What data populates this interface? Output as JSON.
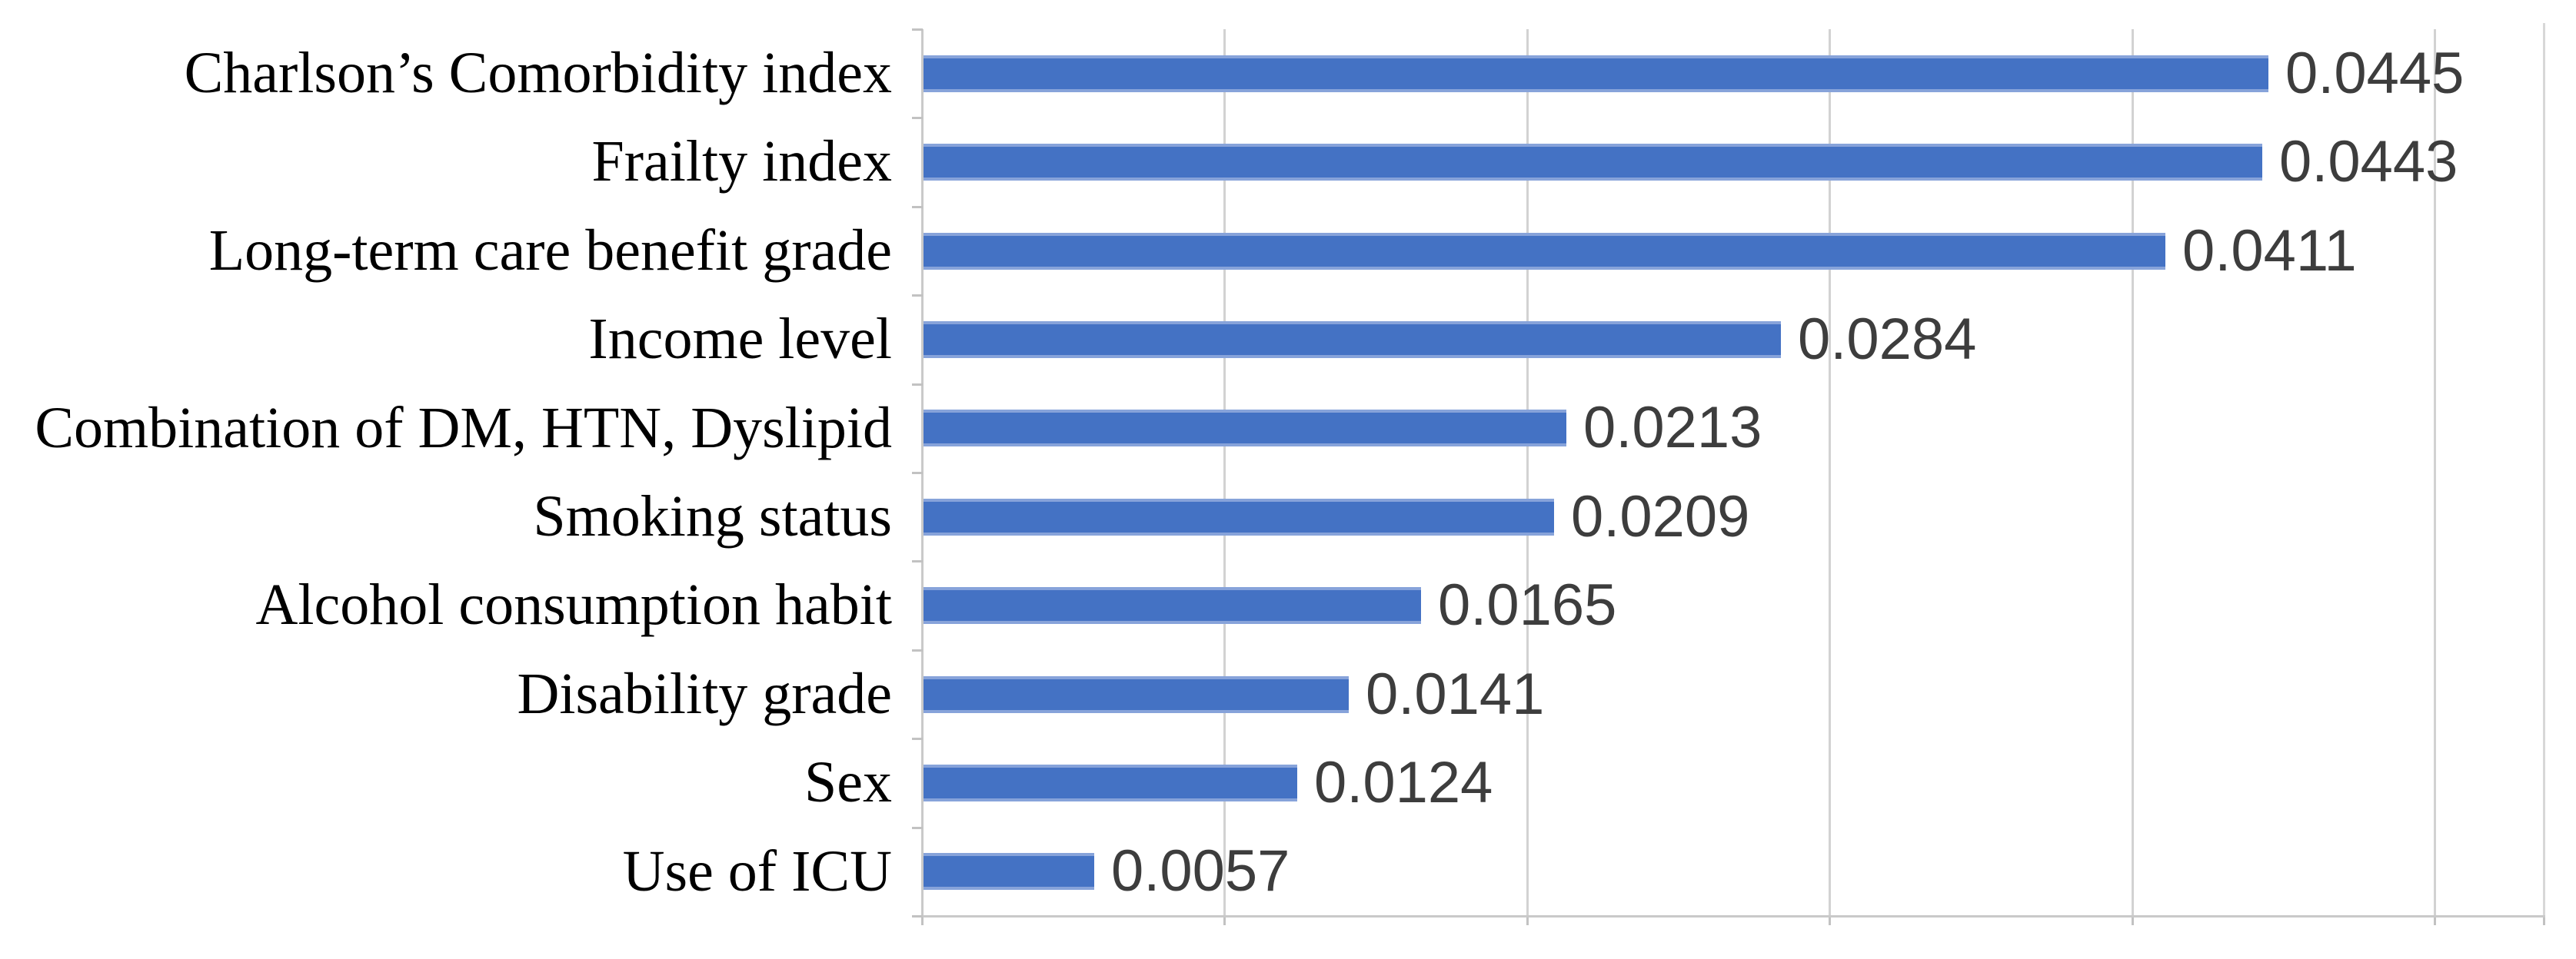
{
  "chart_data": {
    "type": "bar",
    "orientation": "horizontal",
    "title": "",
    "xlabel": "",
    "ylabel": "",
    "categories": [
      "Charlson’s Comorbidity index",
      "Frailty index",
      "Long-term care benefit grade",
      "Income level",
      "Combination of DM, HTN, Dyslipid",
      "Smoking status",
      "Alcohol consumption habit",
      "Disability grade",
      "Sex",
      "Use of ICU"
    ],
    "values": [
      0.0445,
      0.0443,
      0.0411,
      0.0284,
      0.0213,
      0.0209,
      0.0165,
      0.0141,
      0.0124,
      0.0057
    ],
    "value_labels": [
      "0.0445",
      "0.0443",
      "0.0411",
      "0.0284",
      "0.0213",
      "0.0209",
      "0.0165",
      "0.0141",
      "0.0124",
      "0.0057"
    ],
    "xlim": [
      0,
      0.0536
    ],
    "gridlines_at": [
      0,
      0.01,
      0.02,
      0.03,
      0.04,
      0.05
    ],
    "grid": true,
    "legend": false,
    "axis_tick_labels_visible": false,
    "colors": {
      "bar_fill": "#4472c4",
      "bar_edge": "#87a3da",
      "gridline": "#d2d2d2",
      "axis_line": "#c9c9c9",
      "value_label": "#3d3d3d",
      "category_label": "#000000",
      "background": "#ffffff"
    }
  }
}
